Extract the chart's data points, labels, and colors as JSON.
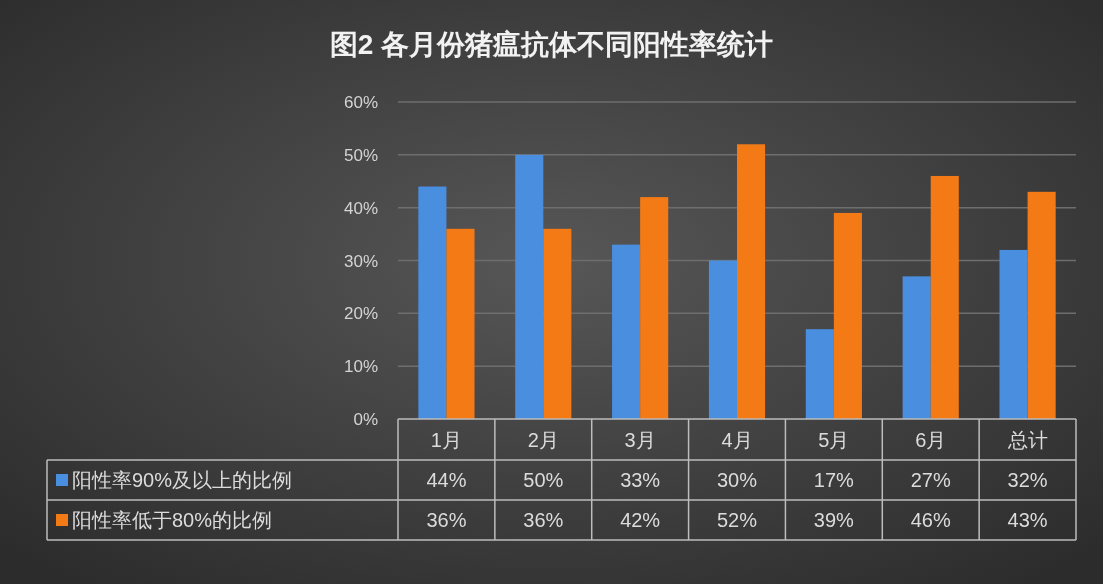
{
  "chart_data": {
    "type": "bar",
    "title": "图2 各月份猪瘟抗体不同阳性率统计",
    "categories": [
      "1月",
      "2月",
      "3月",
      "4月",
      "5月",
      "6月",
      "总计"
    ],
    "series": [
      {
        "name": "阳性率90%及以上的比例",
        "color": "#4a8ee0",
        "values": [
          44,
          50,
          33,
          30,
          17,
          27,
          32
        ],
        "value_labels": [
          "44%",
          "50%",
          "33%",
          "30%",
          "17%",
          "27%",
          "32%"
        ]
      },
      {
        "name": "阳性率低于80%的比例",
        "color": "#f47a16",
        "values": [
          36,
          36,
          42,
          52,
          39,
          46,
          43
        ],
        "value_labels": [
          "36%",
          "36%",
          "42%",
          "52%",
          "39%",
          "46%",
          "43%"
        ]
      }
    ],
    "ylim": [
      0,
      60
    ],
    "yticks": [
      {
        "value": 0,
        "label": "0%"
      },
      {
        "value": 10,
        "label": "10%"
      },
      {
        "value": 20,
        "label": "20%"
      },
      {
        "value": 30,
        "label": "30%"
      },
      {
        "value": 40,
        "label": "40%"
      },
      {
        "value": 50,
        "label": "50%"
      },
      {
        "value": 60,
        "label": "60%"
      }
    ],
    "grid": "y",
    "legend": "bottom"
  }
}
